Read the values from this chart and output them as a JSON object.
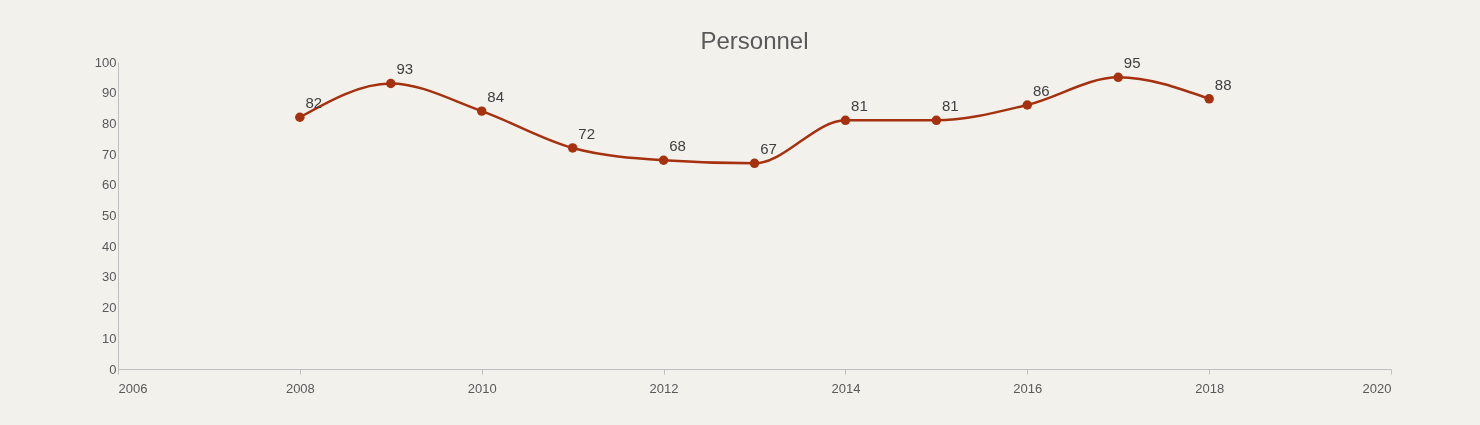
{
  "chart_data": {
    "type": "line",
    "title": "Personnel",
    "x": [
      2008,
      2009,
      2010,
      2011,
      2012,
      2013,
      2014,
      2015,
      2016,
      2017,
      2018
    ],
    "series": [
      {
        "color": "#a5310f",
        "values": [
          82,
          93,
          84,
          72,
          68,
          67,
          81,
          81,
          86,
          95,
          88
        ]
      }
    ],
    "xlim": [
      2006,
      2020
    ],
    "xticks": [
      2006,
      2008,
      2010,
      2012,
      2014,
      2016,
      2018,
      2020
    ],
    "ylim": [
      0,
      100
    ],
    "yticks": [
      0,
      10,
      20,
      30,
      40,
      50,
      60,
      70,
      80,
      90,
      100
    ],
    "grid": false,
    "legend": false,
    "marker": "circle",
    "line_style": "solid",
    "data_labels": true
  }
}
